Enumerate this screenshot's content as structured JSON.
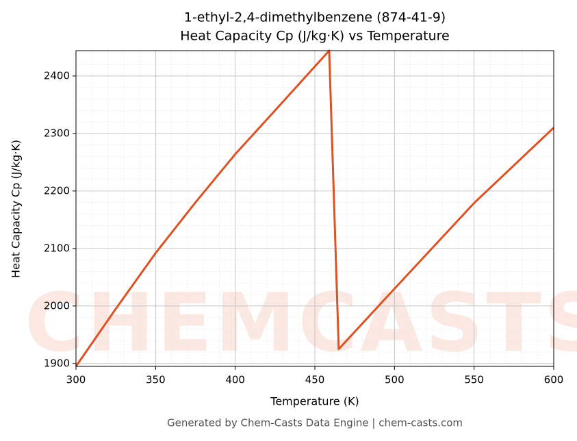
{
  "chart_data": {
    "type": "line",
    "title": "1-ethyl-2,4-dimethylbenzene (874-41-9)",
    "subtitle": "Heat Capacity Cp (J/kg·K) vs Temperature",
    "x_label": "Temperature (K)",
    "y_label": "Heat Capacity Cp (J/kg·K)",
    "footer": "Generated by Chem-Casts Data Engine | chem-casts.com",
    "watermark": "CHEMCASTS",
    "x": [
      300,
      325,
      350,
      375,
      400,
      425,
      459,
      465,
      500,
      550,
      600
    ],
    "series": [
      {
        "name": "Cp",
        "color": "#d95326",
        "values": [
          1895,
          1995,
          2092,
          2180,
          2264,
          2340,
          2444,
          1925,
          2030,
          2179,
          2310
        ]
      }
    ],
    "xlim": [
      300,
      600
    ],
    "xticks": [
      300,
      350,
      400,
      450,
      500,
      550,
      600
    ],
    "ylim": [
      1895,
      2444
    ],
    "yticks": [
      1900,
      2000,
      2100,
      2200,
      2300,
      2400
    ],
    "grid": true,
    "minor_grid": true
  }
}
